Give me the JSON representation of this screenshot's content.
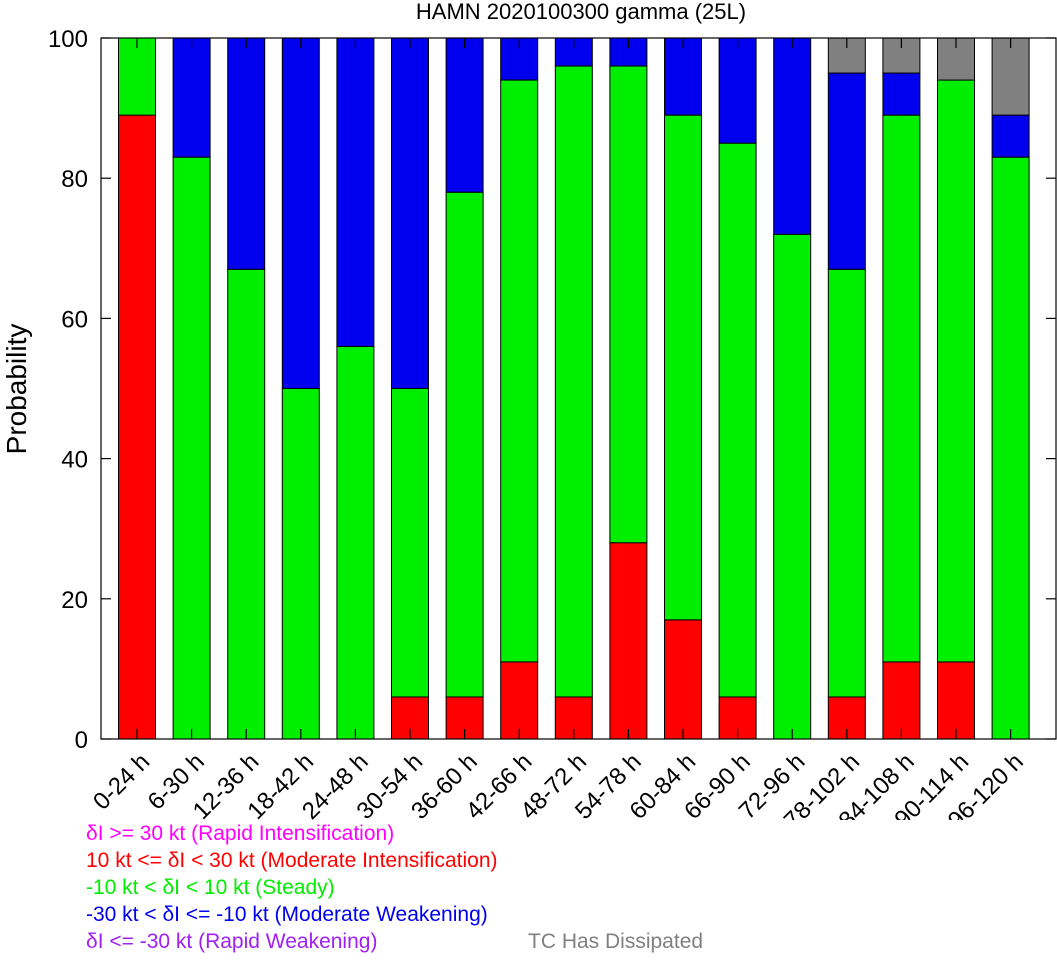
{
  "chart_data": {
    "type": "bar",
    "stacked": true,
    "title": "HAMN 2020100300 gamma (25L)",
    "xlabel": "",
    "ylabel": "Probability",
    "ylim": [
      0,
      100
    ],
    "yticks": [
      0,
      20,
      40,
      60,
      80,
      100
    ],
    "grid": false,
    "categories": [
      "0-24 h",
      "6-30 h",
      "12-36 h",
      "18-42 h",
      "24-48 h",
      "30-54 h",
      "36-60 h",
      "42-66 h",
      "48-72 h",
      "54-78 h",
      "60-84 h",
      "66-90 h",
      "72-96 h",
      "78-102 h",
      "84-108 h",
      "90-114 h",
      "96-120 h"
    ],
    "series": [
      {
        "name": "10 kt <= δI < 30 kt (Moderate Intensification)",
        "color": "#ff0000",
        "values": [
          89,
          0,
          0,
          0,
          0,
          6,
          6,
          11,
          6,
          28,
          17,
          6,
          0,
          6,
          11,
          11,
          0
        ]
      },
      {
        "name": "-10 kt < δI < 10 kt (Steady)",
        "color": "#00ee00",
        "values": [
          11,
          83,
          67,
          50,
          56,
          44,
          72,
          83,
          90,
          68,
          72,
          79,
          72,
          61,
          78,
          83,
          83
        ]
      },
      {
        "name": "-30 kt < δI <= -10 kt (Moderate Weakening)",
        "color": "#0000ee",
        "values": [
          0,
          17,
          33,
          50,
          44,
          50,
          22,
          6,
          4,
          4,
          11,
          15,
          28,
          28,
          6,
          0,
          6
        ]
      },
      {
        "name": "TC Has Dissipated",
        "color": "#808080",
        "values": [
          0,
          0,
          0,
          0,
          0,
          0,
          0,
          0,
          0,
          0,
          0,
          0,
          0,
          5,
          5,
          6,
          11
        ]
      }
    ]
  },
  "legend": {
    "rapid_intensification": {
      "text": "δI >= 30 kt (Rapid Intensification)",
      "color": "#ff00ff"
    },
    "moderate_intensification": {
      "text": "10 kt <= δI < 30 kt (Moderate Intensification)",
      "color": "#ff0000"
    },
    "steady": {
      "text": "-10 kt < δI < 10 kt (Steady)",
      "color": "#00ee00"
    },
    "moderate_weakening": {
      "text": "-30 kt < δI <= -10 kt (Moderate Weakening)",
      "color": "#0000ee"
    },
    "rapid_weakening": {
      "text": "δI <= -30 kt (Rapid Weakening)",
      "color": "#a020f0"
    },
    "dissipated": {
      "text": "TC Has Dissipated",
      "color": "#808080"
    }
  }
}
